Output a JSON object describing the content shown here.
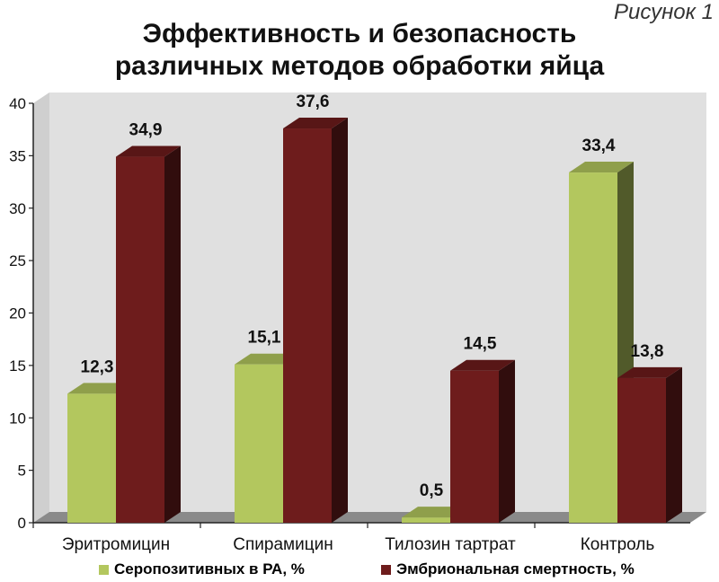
{
  "figure_label": "Рисунок 1",
  "colors": {
    "series1": "#b3c75e",
    "series2": "#6e1c1c",
    "wall": "#e0e0e0",
    "floor": "#8a8a8a"
  },
  "chart_data": {
    "type": "bar",
    "title_lines": [
      "Эффективность и безопасность",
      "различных методов обработки яйца"
    ],
    "categories": [
      "Эритромицин",
      "Спирамицин",
      "Тилозин тартрат",
      "Контроль"
    ],
    "series": [
      {
        "name": "Серопозитивных в РА, %",
        "values": [
          12.3,
          15.1,
          0.5,
          33.4
        ],
        "labels": [
          "12,3",
          "15,1",
          "0,5",
          "33,4"
        ]
      },
      {
        "name": "Эмбриональная смертность, %",
        "values": [
          34.9,
          37.6,
          14.5,
          13.8
        ],
        "labels": [
          "34,9",
          "37,6",
          "14,5",
          "13,8"
        ]
      }
    ],
    "ylim": [
      0,
      40
    ],
    "yticks": [
      "0",
      "5",
      "10",
      "15",
      "20",
      "25",
      "30",
      "35",
      "40"
    ],
    "grid": false,
    "legend_position": "bottom",
    "three_d": true
  }
}
